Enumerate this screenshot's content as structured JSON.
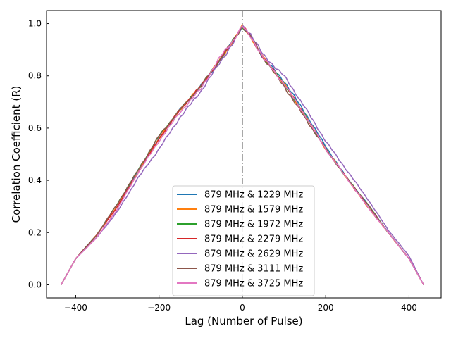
{
  "chart_data": {
    "type": "line",
    "title": "",
    "xlabel": "Lag (Number of Pulse)",
    "ylabel": "Correlation Coefficient (R)",
    "xlim": [
      -470,
      477
    ],
    "ylim": [
      -0.05,
      1.05
    ],
    "xticks": [
      -400,
      -200,
      0,
      200,
      400
    ],
    "xtick_labels": [
      "−400",
      "−200",
      "0",
      "200",
      "400"
    ],
    "yticks": [
      0.0,
      0.2,
      0.4,
      0.6,
      0.8,
      1.0
    ],
    "ytick_labels": [
      "0.0",
      "0.2",
      "0.4",
      "0.6",
      "0.8",
      "1.0"
    ],
    "vline": {
      "x": 0,
      "style": "dash-dot",
      "color": "#808080"
    },
    "grid": false,
    "legend_position": "lower center",
    "series": [
      {
        "name": "879 MHz & 1229 MHz",
        "color": "#1f77b4",
        "x": [
          -435,
          -400,
          -350,
          -300,
          -250,
          -200,
          -150,
          -100,
          -50,
          -20,
          0,
          20,
          50,
          100,
          150,
          200,
          250,
          300,
          350,
          400,
          435
        ],
        "y": [
          0.0,
          0.1,
          0.19,
          0.3,
          0.44,
          0.56,
          0.67,
          0.76,
          0.87,
          0.94,
          0.99,
          0.95,
          0.87,
          0.78,
          0.66,
          0.53,
          0.41,
          0.31,
          0.2,
          0.1,
          0.0
        ]
      },
      {
        "name": "879 MHz & 1579 MHz",
        "color": "#ff7f0e",
        "x": [
          -435,
          -400,
          -350,
          -300,
          -250,
          -200,
          -150,
          -100,
          -50,
          -20,
          0,
          20,
          50,
          100,
          150,
          200,
          250,
          300,
          350,
          400,
          435
        ],
        "y": [
          0.0,
          0.1,
          0.19,
          0.3,
          0.43,
          0.56,
          0.67,
          0.76,
          0.87,
          0.94,
          0.99,
          0.95,
          0.87,
          0.77,
          0.65,
          0.52,
          0.41,
          0.3,
          0.2,
          0.1,
          0.0
        ]
      },
      {
        "name": "879 MHz & 1972 MHz",
        "color": "#2ca02c",
        "x": [
          -435,
          -400,
          -350,
          -300,
          -250,
          -200,
          -150,
          -100,
          -50,
          -20,
          0,
          20,
          50,
          100,
          150,
          200,
          250,
          300,
          350,
          400,
          435
        ],
        "y": [
          0.0,
          0.1,
          0.19,
          0.31,
          0.44,
          0.57,
          0.67,
          0.76,
          0.87,
          0.94,
          0.99,
          0.95,
          0.87,
          0.77,
          0.65,
          0.52,
          0.41,
          0.31,
          0.2,
          0.1,
          0.0
        ]
      },
      {
        "name": "879 MHz & 2279 MHz",
        "color": "#d62728",
        "x": [
          -435,
          -400,
          -350,
          -300,
          -250,
          -200,
          -150,
          -100,
          -50,
          -20,
          0,
          20,
          50,
          100,
          150,
          200,
          250,
          300,
          350,
          400,
          435
        ],
        "y": [
          0.0,
          0.1,
          0.19,
          0.3,
          0.43,
          0.56,
          0.67,
          0.76,
          0.87,
          0.94,
          0.99,
          0.95,
          0.87,
          0.77,
          0.65,
          0.52,
          0.41,
          0.3,
          0.2,
          0.1,
          0.0
        ]
      },
      {
        "name": "879 MHz & 2629 MHz",
        "color": "#9467bd",
        "x": [
          -435,
          -400,
          -350,
          -300,
          -250,
          -200,
          -150,
          -100,
          -50,
          -20,
          0,
          20,
          50,
          100,
          150,
          200,
          250,
          300,
          350,
          400,
          435
        ],
        "y": [
          0.0,
          0.1,
          0.18,
          0.28,
          0.41,
          0.52,
          0.64,
          0.74,
          0.86,
          0.93,
          0.99,
          0.96,
          0.88,
          0.8,
          0.68,
          0.55,
          0.44,
          0.33,
          0.21,
          0.11,
          0.0
        ]
      },
      {
        "name": "879 MHz & 3111 MHz",
        "color": "#8c564b",
        "x": [
          -435,
          -400,
          -350,
          -300,
          -250,
          -200,
          -150,
          -100,
          -50,
          -20,
          0,
          20,
          50,
          100,
          150,
          200,
          250,
          300,
          350,
          400,
          435
        ],
        "y": [
          0.0,
          0.1,
          0.19,
          0.31,
          0.44,
          0.57,
          0.67,
          0.76,
          0.87,
          0.94,
          0.99,
          0.95,
          0.87,
          0.76,
          0.64,
          0.52,
          0.41,
          0.31,
          0.2,
          0.1,
          0.0
        ]
      },
      {
        "name": "879 MHz & 3725 MHz",
        "color": "#e377c2",
        "x": [
          -435,
          -400,
          -350,
          -300,
          -250,
          -200,
          -150,
          -100,
          -50,
          -20,
          0,
          20,
          50,
          100,
          150,
          200,
          250,
          300,
          350,
          400,
          435
        ],
        "y": [
          0.0,
          0.1,
          0.18,
          0.29,
          0.43,
          0.55,
          0.66,
          0.75,
          0.88,
          0.94,
          0.99,
          0.95,
          0.87,
          0.77,
          0.65,
          0.52,
          0.41,
          0.3,
          0.2,
          0.1,
          0.0
        ]
      }
    ]
  }
}
